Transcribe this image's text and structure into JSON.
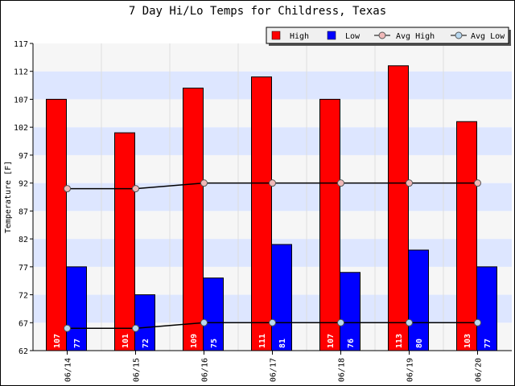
{
  "chart_data": {
    "type": "bar",
    "title": "7 Day Hi/Lo Temps for Childress, Texas",
    "ylabel": "Temperature [F]",
    "xlabel": "",
    "ylim": [
      62,
      117
    ],
    "yticks": [
      62,
      67,
      72,
      77,
      82,
      87,
      92,
      97,
      102,
      107,
      112,
      117
    ],
    "categories": [
      "06/14",
      "06/15",
      "06/16",
      "06/17",
      "06/18",
      "06/19",
      "06/20"
    ],
    "series": [
      {
        "name": "High",
        "kind": "bar",
        "color": "#ff0000",
        "values": [
          107,
          101,
          109,
          111,
          107,
          113,
          103
        ]
      },
      {
        "name": "Low",
        "kind": "bar",
        "color": "#0000ff",
        "values": [
          77,
          72,
          75,
          81,
          76,
          80,
          77
        ]
      },
      {
        "name": "Avg High",
        "kind": "line",
        "color": "#000000",
        "marker_fill": "#f0b8b8",
        "values": [
          91,
          91,
          92,
          92,
          92,
          92,
          92
        ]
      },
      {
        "name": "Avg Low",
        "kind": "line",
        "color": "#000000",
        "marker_fill": "#b8d8f0",
        "values": [
          66,
          66,
          67,
          67,
          67,
          67,
          67
        ]
      }
    ],
    "grid": true,
    "legend_position": "top-right",
    "band_colors": [
      "#f6f6f6",
      "#dde6ff"
    ]
  }
}
